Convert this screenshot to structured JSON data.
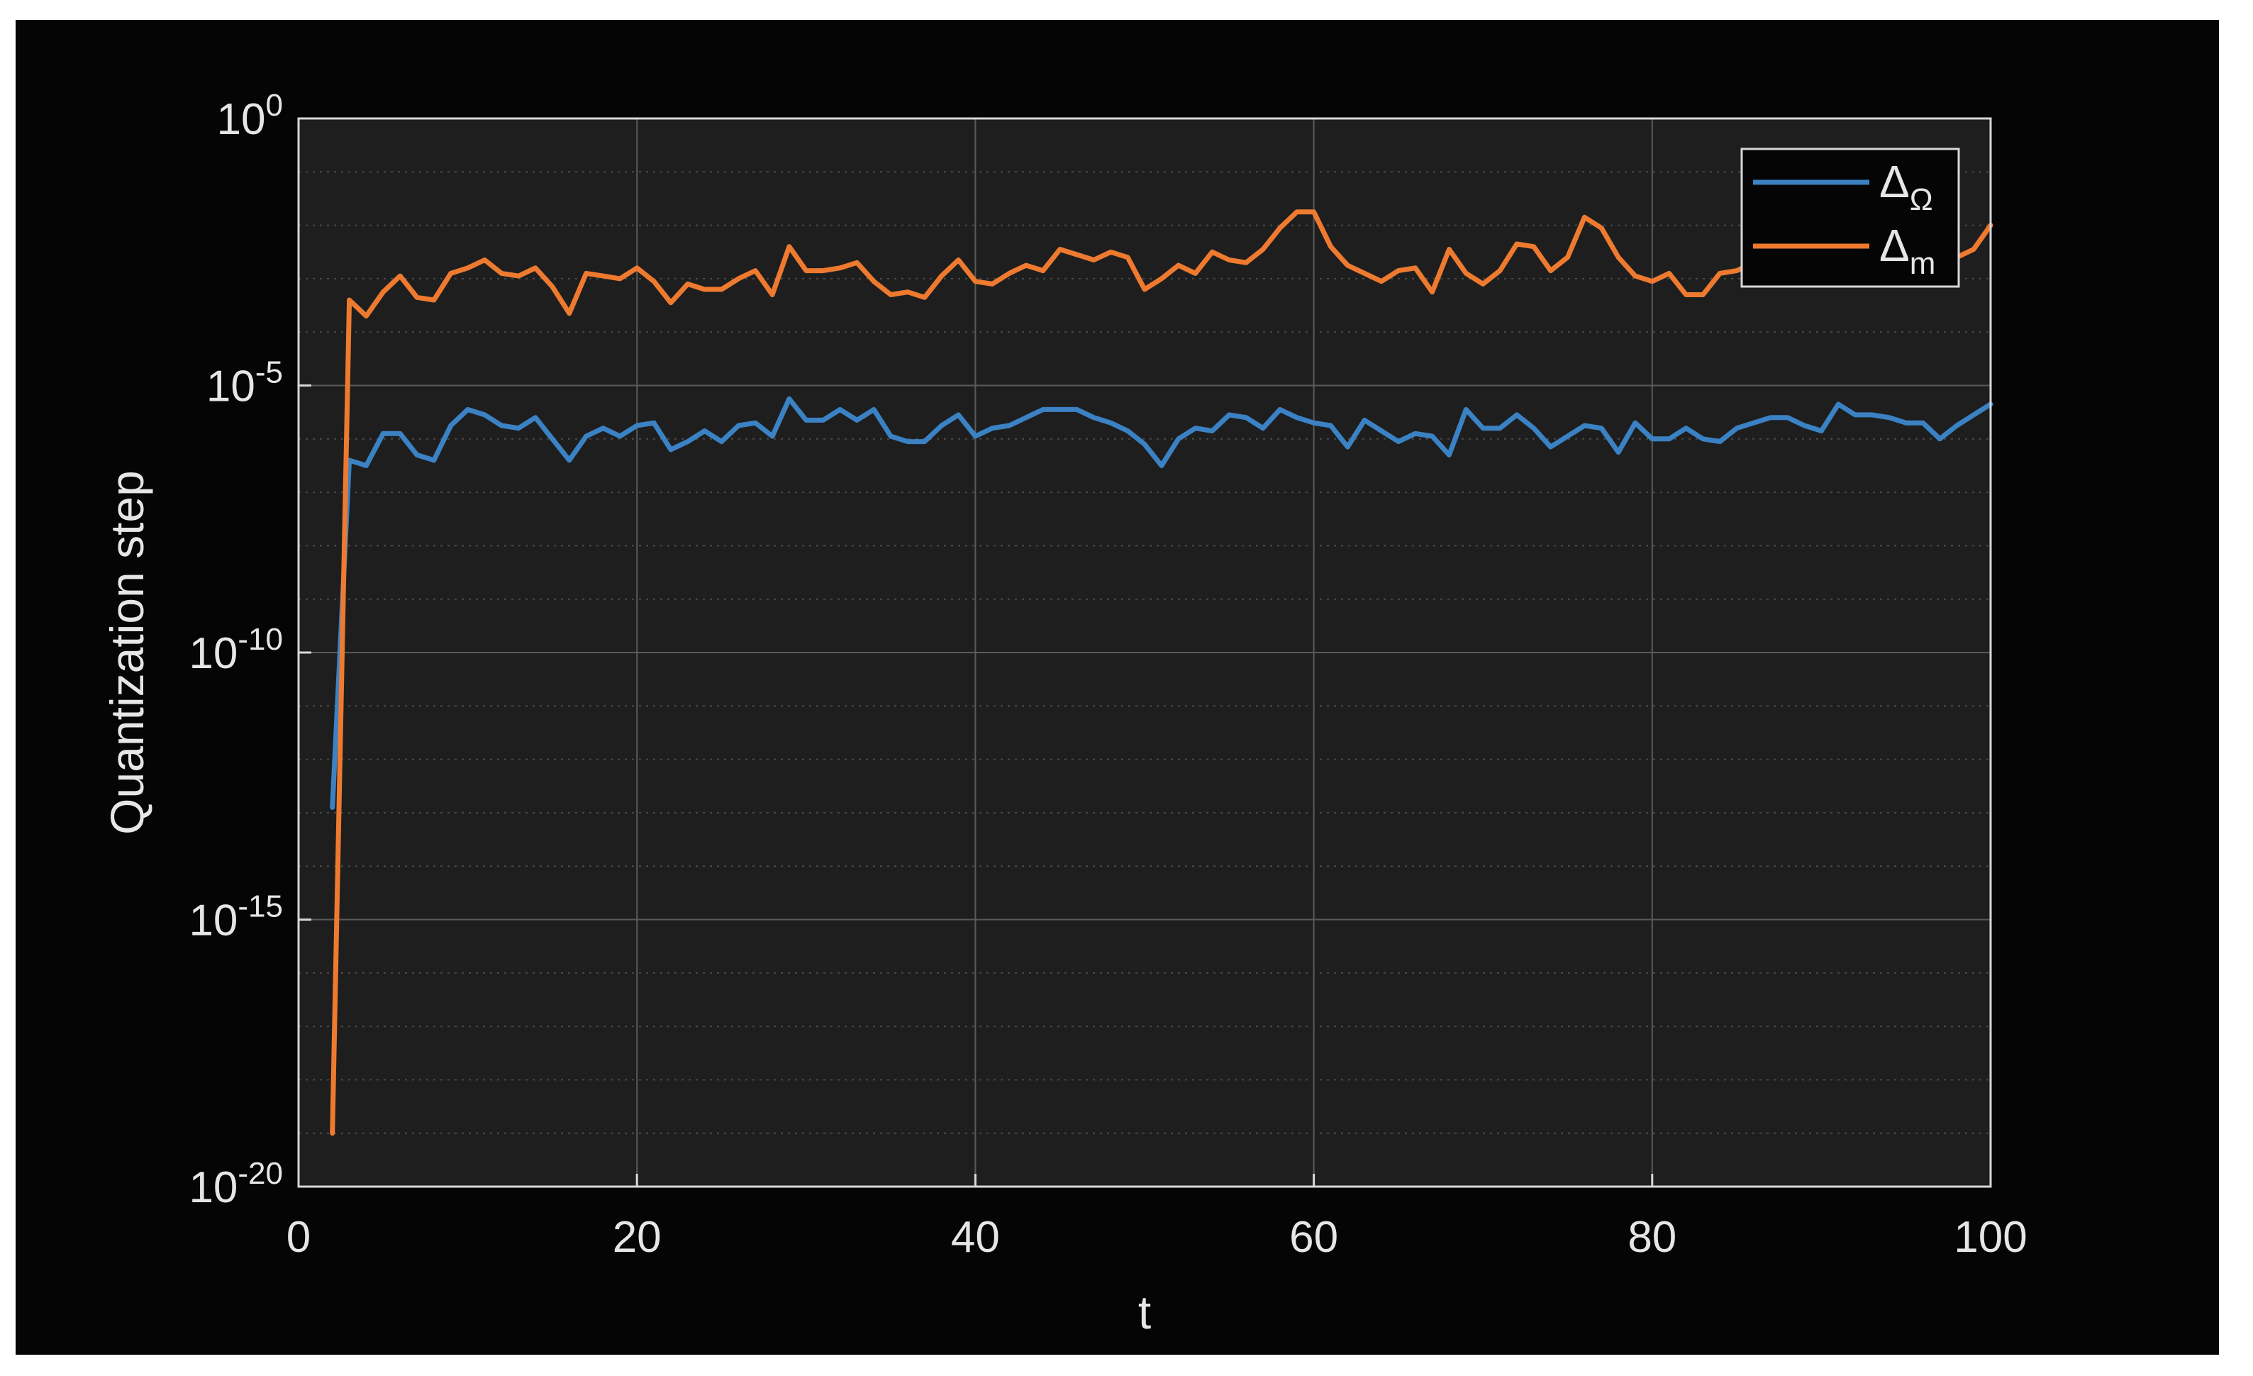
{
  "chart_data": {
    "type": "line",
    "title": "",
    "xlabel": "t",
    "ylabel": "Quantization step",
    "xlim": [
      0,
      100
    ],
    "ylim_log10": [
      -20,
      0
    ],
    "yscale": "log",
    "grid": true,
    "legend_position": "top-right",
    "x_ticks": [
      "0",
      "20",
      "40",
      "60",
      "80",
      "100"
    ],
    "y_ticks": [
      {
        "base": "10",
        "exp": "0",
        "log10": 0
      },
      {
        "base": "10",
        "exp": "-5",
        "log10": -5
      },
      {
        "base": "10",
        "exp": "-10",
        "log10": -10
      },
      {
        "base": "10",
        "exp": "-15",
        "log10": -15
      },
      {
        "base": "10",
        "exp": "-20",
        "log10": -20
      }
    ],
    "x": [
      2,
      3,
      4,
      5,
      6,
      7,
      8,
      9,
      10,
      11,
      12,
      13,
      14,
      15,
      16,
      17,
      18,
      19,
      20,
      21,
      22,
      23,
      24,
      25,
      26,
      27,
      28,
      29,
      30,
      31,
      32,
      33,
      34,
      35,
      36,
      37,
      38,
      39,
      40,
      41,
      42,
      43,
      44,
      45,
      46,
      47,
      48,
      49,
      50,
      51,
      52,
      53,
      54,
      55,
      56,
      57,
      58,
      59,
      60,
      61,
      62,
      63,
      64,
      65,
      66,
      67,
      68,
      69,
      70,
      71,
      72,
      73,
      74,
      75,
      76,
      77,
      78,
      79,
      80,
      81,
      82,
      83,
      84,
      85,
      86,
      87,
      88,
      89,
      90,
      91,
      92,
      93,
      94,
      95,
      96,
      97,
      98,
      99,
      100
    ],
    "series": [
      {
        "name": "Δ_Ω",
        "label_main": "Δ",
        "label_sub": "Ω",
        "color": "#3b82c4",
        "log10_values": [
          -12.9,
          -6.4,
          -6.5,
          -5.9,
          -5.9,
          -6.3,
          -6.4,
          -5.75,
          -5.45,
          -5.55,
          -5.75,
          -5.8,
          -5.6,
          -6.0,
          -6.4,
          -5.95,
          -5.8,
          -5.95,
          -5.75,
          -5.7,
          -6.2,
          -6.05,
          -5.85,
          -6.05,
          -5.75,
          -5.7,
          -5.95,
          -5.25,
          -5.65,
          -5.65,
          -5.45,
          -5.65,
          -5.45,
          -5.95,
          -6.05,
          -6.05,
          -5.75,
          -5.55,
          -5.95,
          -5.8,
          -5.75,
          -5.6,
          -5.45,
          -5.45,
          -5.45,
          -5.6,
          -5.7,
          -5.85,
          -6.1,
          -6.5,
          -6.0,
          -5.8,
          -5.85,
          -5.55,
          -5.6,
          -5.8,
          -5.45,
          -5.6,
          -5.7,
          -5.75,
          -6.15,
          -5.65,
          -5.85,
          -6.05,
          -5.9,
          -5.95,
          -6.3,
          -5.45,
          -5.8,
          -5.8,
          -5.55,
          -5.8,
          -6.15,
          -5.95,
          -5.75,
          -5.8,
          -6.25,
          -5.7,
          -6.0,
          -6.0,
          -5.8,
          -6.0,
          -6.05,
          -5.8,
          -5.7,
          -5.6,
          -5.6,
          -5.75,
          -5.85,
          -5.35,
          -5.55,
          -5.55,
          -5.6,
          -5.7,
          -5.7,
          -6.0,
          -5.75,
          -5.55,
          -5.35
        ]
      },
      {
        "name": "Δ_m",
        "label_main": "Δ",
        "label_sub": "m",
        "color": "#ee7a30",
        "log10_values": [
          -19.0,
          -3.4,
          -3.7,
          -3.25,
          -2.95,
          -3.35,
          -3.4,
          -2.9,
          -2.8,
          -2.65,
          -2.9,
          -2.95,
          -2.8,
          -3.15,
          -3.65,
          -2.9,
          -2.95,
          -3.0,
          -2.8,
          -3.05,
          -3.45,
          -3.1,
          -3.2,
          -3.2,
          -3.0,
          -2.85,
          -3.3,
          -2.4,
          -2.85,
          -2.85,
          -2.8,
          -2.7,
          -3.05,
          -3.3,
          -3.25,
          -3.35,
          -2.95,
          -2.65,
          -3.05,
          -3.1,
          -2.9,
          -2.75,
          -2.85,
          -2.45,
          -2.55,
          -2.65,
          -2.5,
          -2.6,
          -3.2,
          -3.0,
          -2.75,
          -2.9,
          -2.5,
          -2.65,
          -2.7,
          -2.45,
          -2.05,
          -1.75,
          -1.75,
          -2.4,
          -2.75,
          -2.9,
          -3.05,
          -2.85,
          -2.8,
          -3.25,
          -2.45,
          -2.9,
          -3.1,
          -2.85,
          -2.35,
          -2.4,
          -2.85,
          -2.6,
          -1.85,
          -2.05,
          -2.6,
          -2.95,
          -3.05,
          -2.9,
          -3.3,
          -3.3,
          -2.9,
          -2.85,
          -2.7,
          -2.6,
          -2.7,
          -2.55,
          -2.9,
          -2.25,
          -2.7,
          -2.45,
          -2.85,
          -2.55,
          -2.6,
          -2.75,
          -2.6,
          -2.45,
          -2.0
        ]
      }
    ]
  }
}
